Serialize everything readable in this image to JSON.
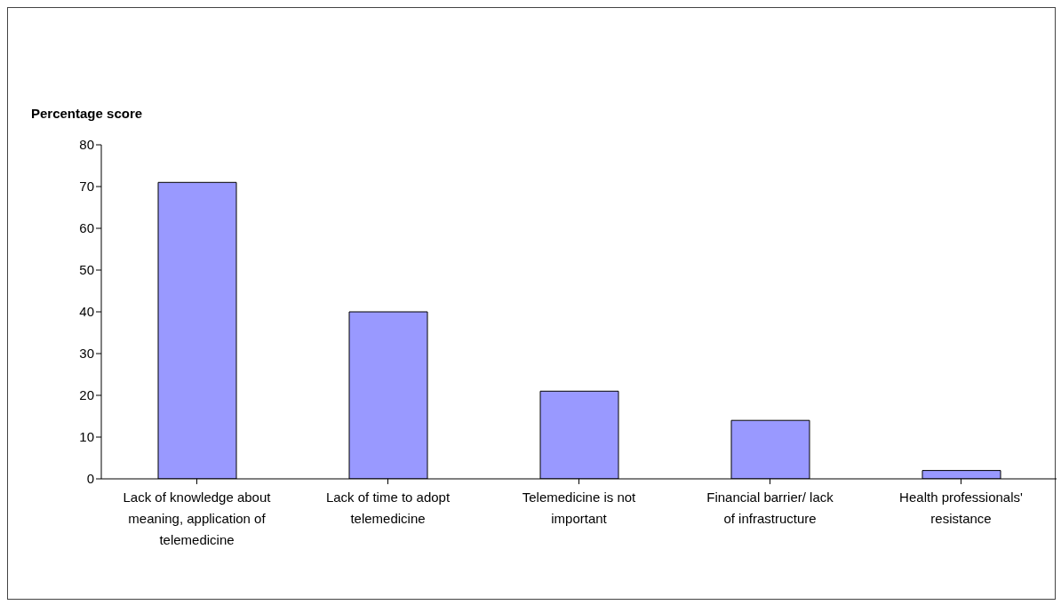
{
  "chart_data": {
    "type": "bar",
    "ylabel": "Percentage score",
    "categories": [
      "Lack of knowledge about meaning, application of telemedicine",
      "Lack of time to adopt telemedicine",
      "Telemedicine is not important",
      "Financial barrier/ lack of infrastructure",
      "Health professionals' resistance"
    ],
    "values": [
      71,
      40,
      21,
      14,
      2
    ],
    "color": "#9999ff",
    "ylim": [
      0,
      80
    ],
    "yticks": [
      0,
      10,
      20,
      30,
      40,
      50,
      60,
      70,
      80
    ],
    "grid": false
  }
}
